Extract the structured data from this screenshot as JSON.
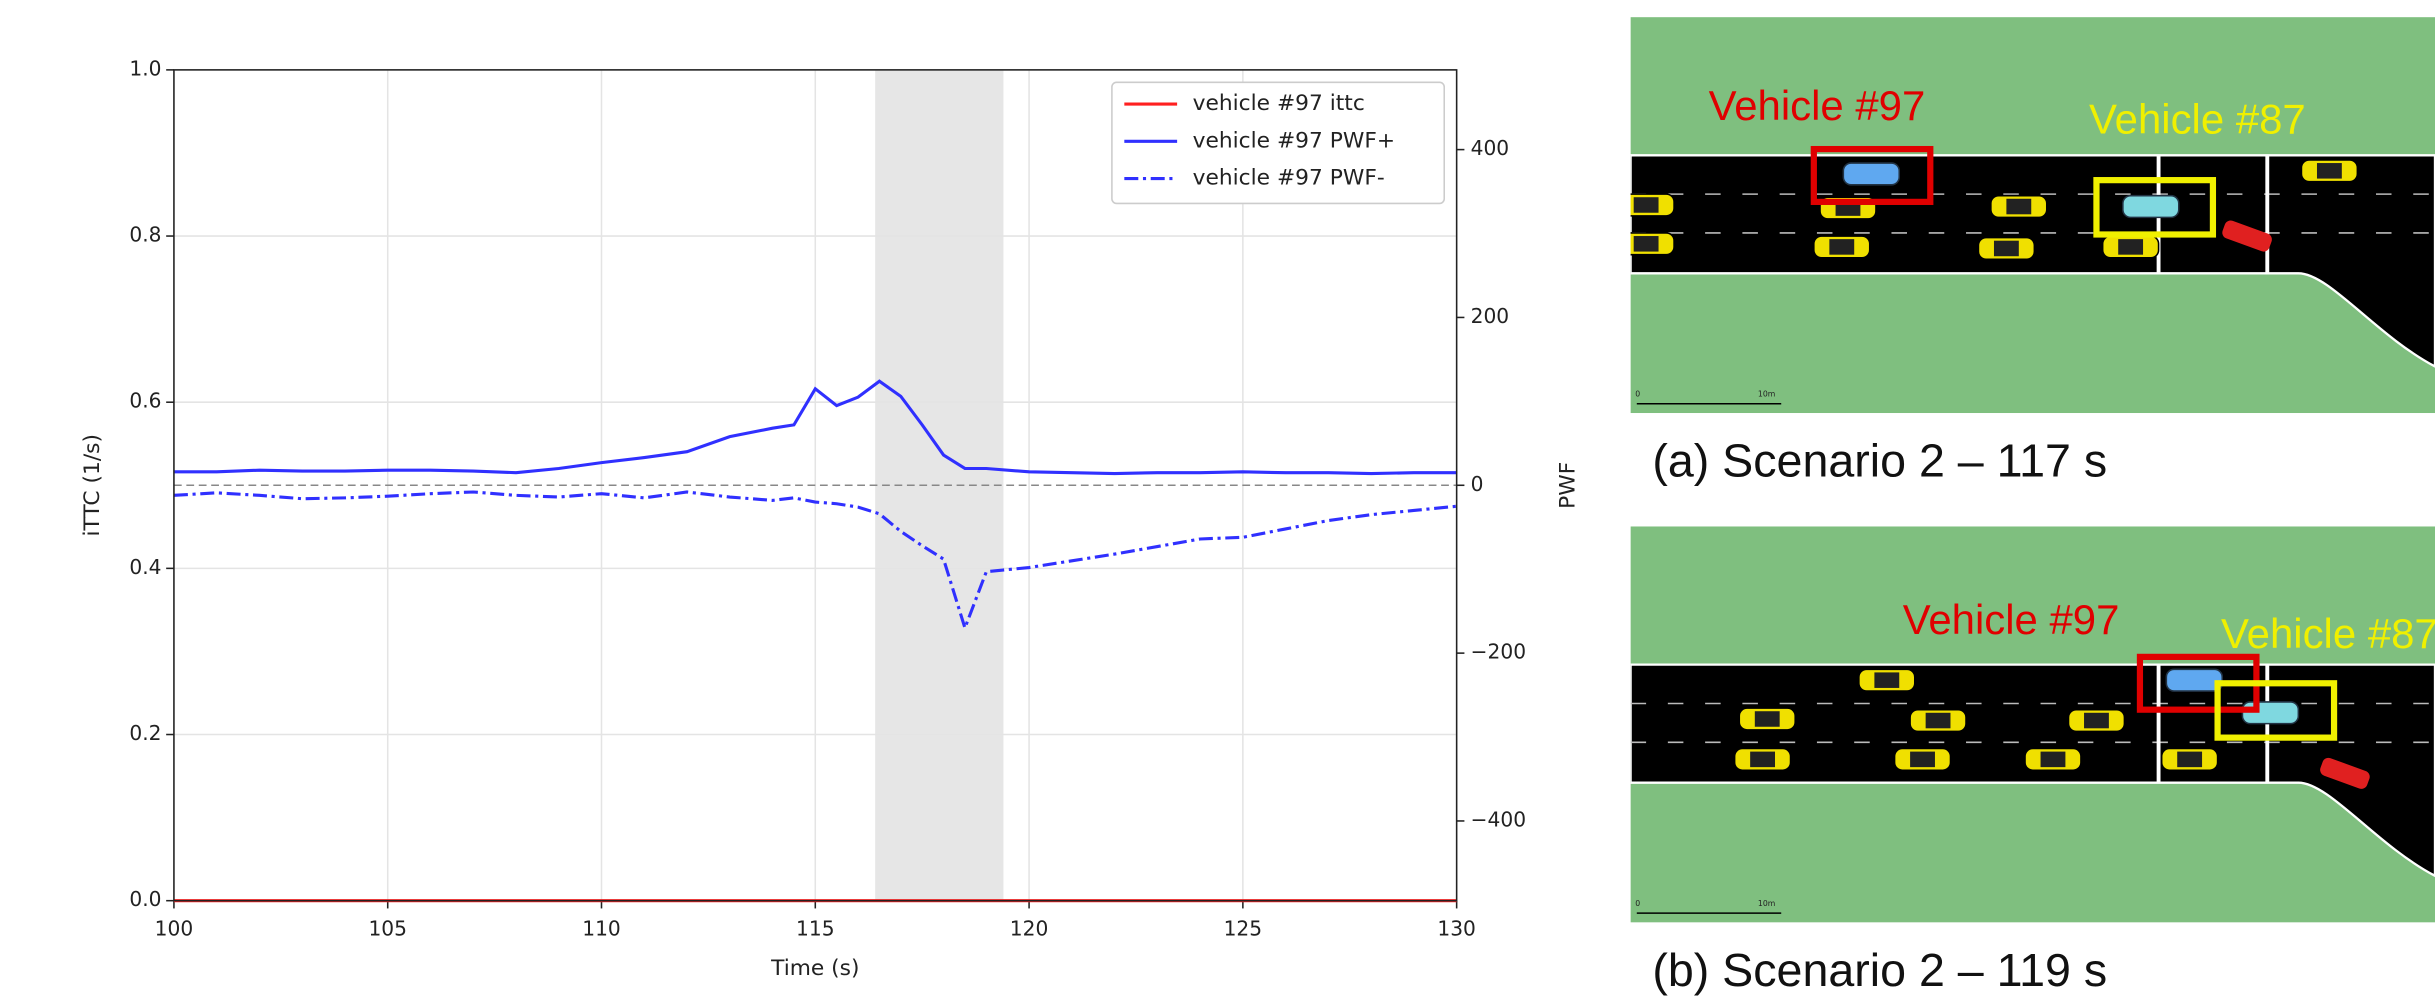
{
  "chart_data": {
    "type": "line",
    "xlabel": "Time (s)",
    "ylabel": "iTTC (1/s)",
    "y2label": "PWF",
    "x": [
      100,
      101,
      102,
      103,
      104,
      105,
      106,
      107,
      108,
      109,
      110,
      111,
      112,
      113,
      114,
      114.5,
      115,
      115.5,
      116,
      116.5,
      117,
      117.5,
      118,
      118.5,
      119,
      120,
      121,
      122,
      123,
      124,
      125,
      126,
      127,
      128,
      129,
      130
    ],
    "series": [
      {
        "name": "vehicle #97 ittc",
        "color": "#ff2020",
        "linestyle": "solid",
        "axis": "y",
        "values": [
          0,
          0,
          0,
          0,
          0,
          0,
          0,
          0,
          0,
          0,
          0,
          0,
          0,
          0,
          0,
          0,
          0,
          0,
          0,
          0,
          0,
          0,
          0,
          0,
          0,
          0,
          0,
          0,
          0,
          0,
          0,
          0,
          0,
          0,
          0,
          0
        ]
      },
      {
        "name": "vehicle #97 PWF+",
        "color": "#3030ff",
        "linestyle": "solid",
        "axis": "y2",
        "values": [
          16,
          16,
          18,
          17,
          17,
          18,
          18,
          17,
          15,
          20,
          27,
          33,
          40,
          58,
          68,
          72,
          115,
          95,
          105,
          124,
          106,
          72,
          36,
          20,
          20,
          16,
          15,
          14,
          15,
          15,
          16,
          15,
          15,
          14,
          15,
          15
        ]
      },
      {
        "name": "vehicle #97 PWF-",
        "color": "#3030ff",
        "linestyle": "dashdot",
        "axis": "y2",
        "values": [
          -12,
          -9,
          -12,
          -16,
          -15,
          -13,
          -10,
          -8,
          -12,
          -14,
          -10,
          -15,
          -8,
          -14,
          -18,
          -15,
          -20,
          -22,
          -26,
          -34,
          -55,
          -72,
          -88,
          -170,
          -103,
          -98,
          -90,
          -82,
          -73,
          -64,
          -62,
          -52,
          -42,
          -35,
          -30,
          -25
        ]
      }
    ],
    "xlim": [
      100,
      130
    ],
    "xticks": [
      100,
      105,
      110,
      115,
      120,
      125,
      130
    ],
    "ylim": [
      0,
      1
    ],
    "yticks": [
      {
        "value": 0,
        "label": "0.0"
      },
      {
        "value": 0.2,
        "label": "0.2"
      },
      {
        "value": 0.4,
        "label": "0.4"
      },
      {
        "value": 0.6,
        "label": "0.6"
      },
      {
        "value": 0.8,
        "label": "0.8"
      },
      {
        "value": 1,
        "label": "1.0"
      }
    ],
    "y2lim": [
      -495,
      495
    ],
    "y2ticks": [
      {
        "value": -400,
        "label": "−400"
      },
      {
        "value": -200,
        "label": "−200"
      },
      0,
      200,
      400
    ],
    "shaded_region": [
      116.4,
      119.4
    ],
    "hline_y2": 0,
    "grid": true,
    "legend": "upper right"
  },
  "panels": [
    {
      "caption": "(a) Scenario 2 – 117 s",
      "label_red": "Vehicle #97",
      "label_yellow": "Vehicle #87",
      "scale_labels": [
        "0",
        "10m"
      ]
    },
    {
      "caption": "(b) Scenario 2 – 119 s",
      "label_red": "Vehicle #97",
      "label_yellow": "Vehicle #87",
      "scale_labels": [
        "0",
        "10m"
      ]
    }
  ]
}
